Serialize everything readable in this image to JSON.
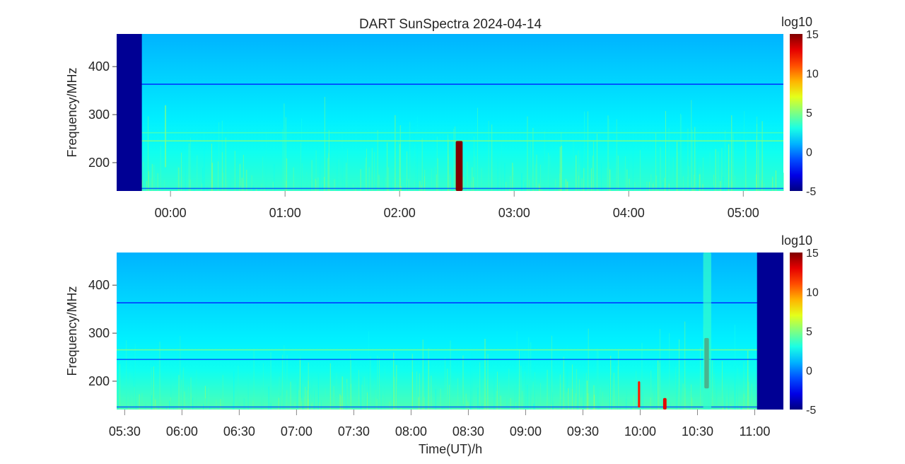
{
  "chart_data": {
    "type": "heatmap",
    "title": "DART SunSpectra 2024-04-14",
    "xlabel": "Time(UT)/h",
    "colorbar": {
      "label": "log10",
      "range": [
        -5,
        15
      ],
      "ticks": [
        "15",
        "10",
        "5",
        "0",
        "-5"
      ],
      "colormap": "jet"
    },
    "panels": [
      {
        "ylabel": "Frequency/MHz",
        "xlim_hours": [
          -0.47,
          5.35
        ],
        "ylim": [
          141,
          468
        ],
        "yticks": [
          {
            "value": 400,
            "label": "400"
          },
          {
            "value": 300,
            "label": "300"
          },
          {
            "value": 200,
            "label": "200"
          }
        ],
        "xticks": [
          {
            "value": 0,
            "label": "00:00"
          },
          {
            "value": 1,
            "label": "01:00"
          },
          {
            "value": 2,
            "label": "02:00"
          },
          {
            "value": 3,
            "label": "03:00"
          },
          {
            "value": 4,
            "label": "04:00"
          },
          {
            "value": 5,
            "label": "05:00"
          }
        ],
        "background_levels": {
          "high_freq": 1,
          "mid_freq": 2,
          "low_freq": 3.5
        },
        "no_data_intervals": [
          [
            -0.47,
            -0.25
          ]
        ],
        "bursts": [
          {
            "t": [
              2.49,
              2.55
            ],
            "f": [
              141,
              245
            ],
            "value": 15
          },
          {
            "t": [
              -0.05,
              -0.04
            ],
            "f": [
              190,
              320
            ],
            "value": 5
          }
        ],
        "lines": [
          {
            "f": 363,
            "value": -2
          },
          {
            "f": 262,
            "value": 4
          },
          {
            "f": 245,
            "value": 5
          },
          {
            "f": 146,
            "value": -1
          }
        ]
      },
      {
        "ylabel": "Frequency/MHz",
        "xlim_hours": [
          5.43,
          11.25
        ],
        "ylim": [
          141,
          468
        ],
        "yticks": [
          {
            "value": 400,
            "label": "400"
          },
          {
            "value": 300,
            "label": "300"
          },
          {
            "value": 200,
            "label": "200"
          }
        ],
        "xticks": [
          {
            "value": 5.5,
            "label": "05:30"
          },
          {
            "value": 6,
            "label": "06:00"
          },
          {
            "value": 6.5,
            "label": "06:30"
          },
          {
            "value": 7,
            "label": "07:00"
          },
          {
            "value": 7.5,
            "label": "07:30"
          },
          {
            "value": 8,
            "label": "08:00"
          },
          {
            "value": 8.5,
            "label": "08:30"
          },
          {
            "value": 9,
            "label": "09:00"
          },
          {
            "value": 9.5,
            "label": "09:30"
          },
          {
            "value": 10,
            "label": "10:00"
          },
          {
            "value": 10.5,
            "label": "10:30"
          },
          {
            "value": 11,
            "label": "11:00"
          }
        ],
        "background_levels": {
          "high_freq": 1,
          "mid_freq": 2,
          "low_freq": 4
        },
        "no_data_intervals": [
          [
            11.02,
            11.25
          ]
        ],
        "bursts": [
          {
            "t": [
              10.56,
              10.6
            ],
            "f": [
              185,
              290
            ],
            "value": 15
          },
          {
            "t": [
              10.55,
              10.62
            ],
            "f": [
              141,
              468
            ],
            "value": 3.5
          },
          {
            "t": [
              10.2,
              10.23
            ],
            "f": [
              141,
              165
            ],
            "value": 13
          },
          {
            "t": [
              9.98,
              10.0
            ],
            "f": [
              145,
              200
            ],
            "value": 12
          }
        ],
        "lines": [
          {
            "f": 363,
            "value": -2
          },
          {
            "f": 265,
            "value": 5
          },
          {
            "f": 245,
            "value": -1
          },
          {
            "f": 146,
            "value": -1
          }
        ]
      }
    ]
  }
}
